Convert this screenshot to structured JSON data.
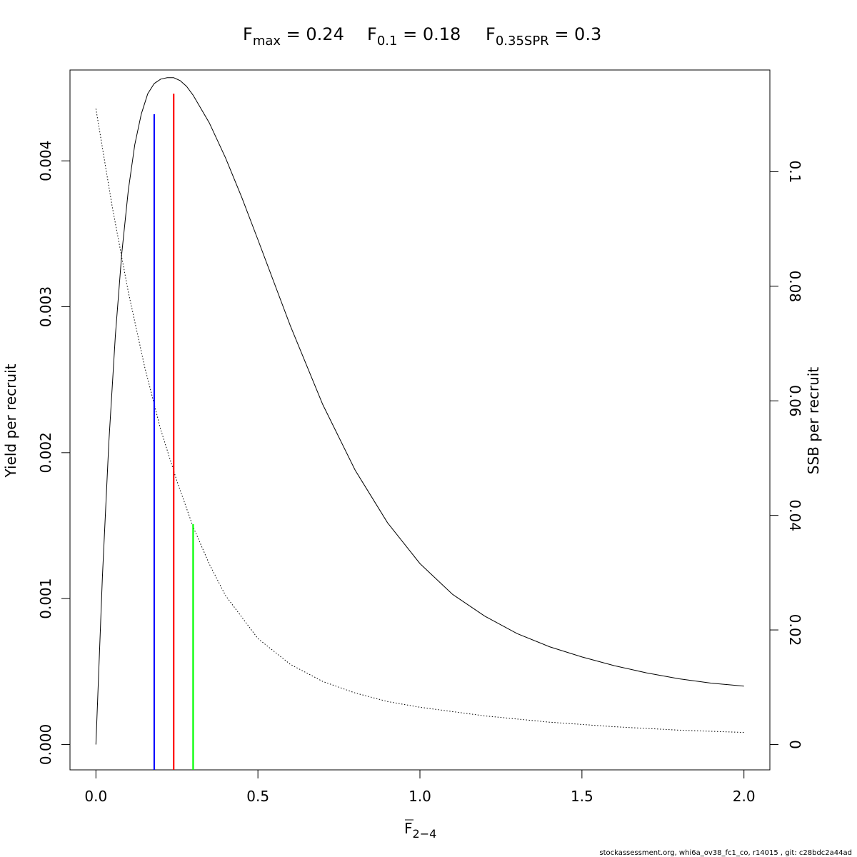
{
  "chart_data": {
    "type": "line",
    "title_parts": [
      {
        "base": "F",
        "sub": "max",
        "rest": " = 0.24"
      },
      {
        "base": "F",
        "sub": "0.1",
        "rest": " = 0.18"
      },
      {
        "base": "F",
        "sub": "0.35SPR",
        "rest": " = 0.3"
      }
    ],
    "xlabel": {
      "base": "F",
      "sub": "2−4",
      "overline": true
    },
    "ylabel_left": "Yield per recruit",
    "ylabel_right": "SSB per recruit",
    "xlim": [
      -0.08,
      2.08
    ],
    "ylim_left": [
      -0.000174,
      0.0046227
    ],
    "ylim_right": [
      -0.00443,
      0.11776
    ],
    "x_ticks": [
      0.0,
      0.5,
      1.0,
      1.5,
      2.0
    ],
    "x_tick_labels": [
      "0.0",
      "0.5",
      "1.0",
      "1.5",
      "2.0"
    ],
    "y_left_ticks": [
      0,
      0.001,
      0.002,
      0.003,
      0.004
    ],
    "y_left_tick_labels": [
      "0.000",
      "0.001",
      "0.002",
      "0.003",
      "0.004"
    ],
    "y_right_ticks": [
      0,
      0.02,
      0.04,
      0.06,
      0.08,
      0.1
    ],
    "y_right_tick_labels": [
      "0",
      "0.02",
      "0.04",
      "0.06",
      "0.08",
      "0.1"
    ],
    "series": [
      {
        "id": "ypr",
        "axis": "left",
        "style": "solid",
        "color": "#000000",
        "x": [
          0,
          0.02,
          0.04,
          0.06,
          0.08,
          0.1,
          0.12,
          0.14,
          0.16,
          0.18,
          0.2,
          0.22,
          0.24,
          0.26,
          0.28,
          0.3,
          0.35,
          0.4,
          0.45,
          0.5,
          0.6,
          0.7,
          0.8,
          0.9,
          1.0,
          1.1,
          1.2,
          1.3,
          1.4,
          1.5,
          1.6,
          1.7,
          1.8,
          1.9,
          2.0
        ],
        "y": [
          0.0,
          0.00115,
          0.00207,
          0.0028,
          0.00337,
          0.0038,
          0.00411,
          0.00432,
          0.00446,
          0.00453,
          0.00456,
          0.00457,
          0.00457,
          0.00455,
          0.00451,
          0.00445,
          0.00426,
          0.00402,
          0.00375,
          0.00346,
          0.00287,
          0.00233,
          0.00188,
          0.00152,
          0.00124,
          0.00103,
          0.00088,
          0.00076,
          0.00067,
          0.0006,
          0.00054,
          0.00049,
          0.00045,
          0.00042,
          0.0004
        ]
      },
      {
        "id": "ssbpr",
        "axis": "right",
        "style": "dotted",
        "color": "#000000",
        "x": [
          0,
          0.05,
          0.1,
          0.15,
          0.2,
          0.25,
          0.3,
          0.35,
          0.4,
          0.5,
          0.6,
          0.7,
          0.8,
          0.9,
          1.0,
          1.2,
          1.4,
          1.6,
          1.8,
          2.0
        ],
        "y": [
          0.111,
          0.094,
          0.079,
          0.066,
          0.055,
          0.046,
          0.038,
          0.0315,
          0.026,
          0.0185,
          0.014,
          0.011,
          0.009,
          0.0075,
          0.0065,
          0.005,
          0.0039,
          0.0031,
          0.0025,
          0.0021
        ]
      }
    ],
    "reference_lines": [
      {
        "name": "F0.1",
        "x": 0.18,
        "y_top": 0.00432,
        "color": "#0000ff"
      },
      {
        "name": "Fmax",
        "x": 0.24,
        "y_top": 0.00446,
        "color": "#ff0000"
      },
      {
        "name": "F0.35SPR",
        "x": 0.3,
        "y_top": 0.00151,
        "color": "#00ff00"
      }
    ],
    "grid": false,
    "legend": "none"
  },
  "footer": "stockassessment.org, whi6a_ov38_fc1_co, r14015 , git: c28bdc2a44ad"
}
